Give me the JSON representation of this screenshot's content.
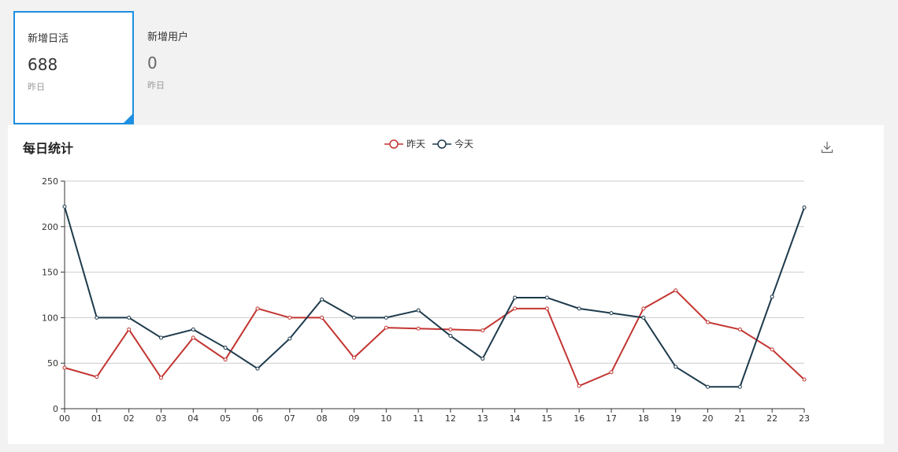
{
  "cards": [
    {
      "title": "新增日活",
      "value": "688",
      "sub": "昨日"
    },
    {
      "title": "新增用户",
      "value": "0",
      "sub": "昨日"
    }
  ],
  "panel": {
    "title": "每日统计",
    "download_icon": "download-icon"
  },
  "colors": {
    "yesterday": "#c23531",
    "today": "#1d3a4c",
    "accent": "#1e8fe1"
  },
  "chart_data": {
    "type": "line",
    "categories": [
      "00",
      "01",
      "02",
      "03",
      "04",
      "05",
      "06",
      "07",
      "08",
      "09",
      "10",
      "11",
      "12",
      "13",
      "14",
      "15",
      "16",
      "17",
      "18",
      "19",
      "20",
      "21",
      "22",
      "23"
    ],
    "series": [
      {
        "name": "昨天",
        "color": "#c23531",
        "values": [
          45,
          35,
          87,
          34,
          78,
          54,
          110,
          100,
          100,
          56,
          89,
          88,
          87,
          86,
          110,
          110,
          25,
          40,
          110,
          130,
          95,
          87,
          65,
          32
        ]
      },
      {
        "name": "今天",
        "color": "#1d3a4c",
        "values": [
          222,
          100,
          100,
          78,
          87,
          67,
          44,
          77,
          120,
          100,
          100,
          108,
          80,
          55,
          122,
          122,
          110,
          105,
          100,
          46,
          24,
          24,
          123,
          221
        ]
      }
    ],
    "yticks": [
      "0",
      "50",
      "100",
      "150",
      "200",
      "250"
    ],
    "ylim": [
      0,
      250
    ],
    "grid": true,
    "legend": "top-center"
  }
}
